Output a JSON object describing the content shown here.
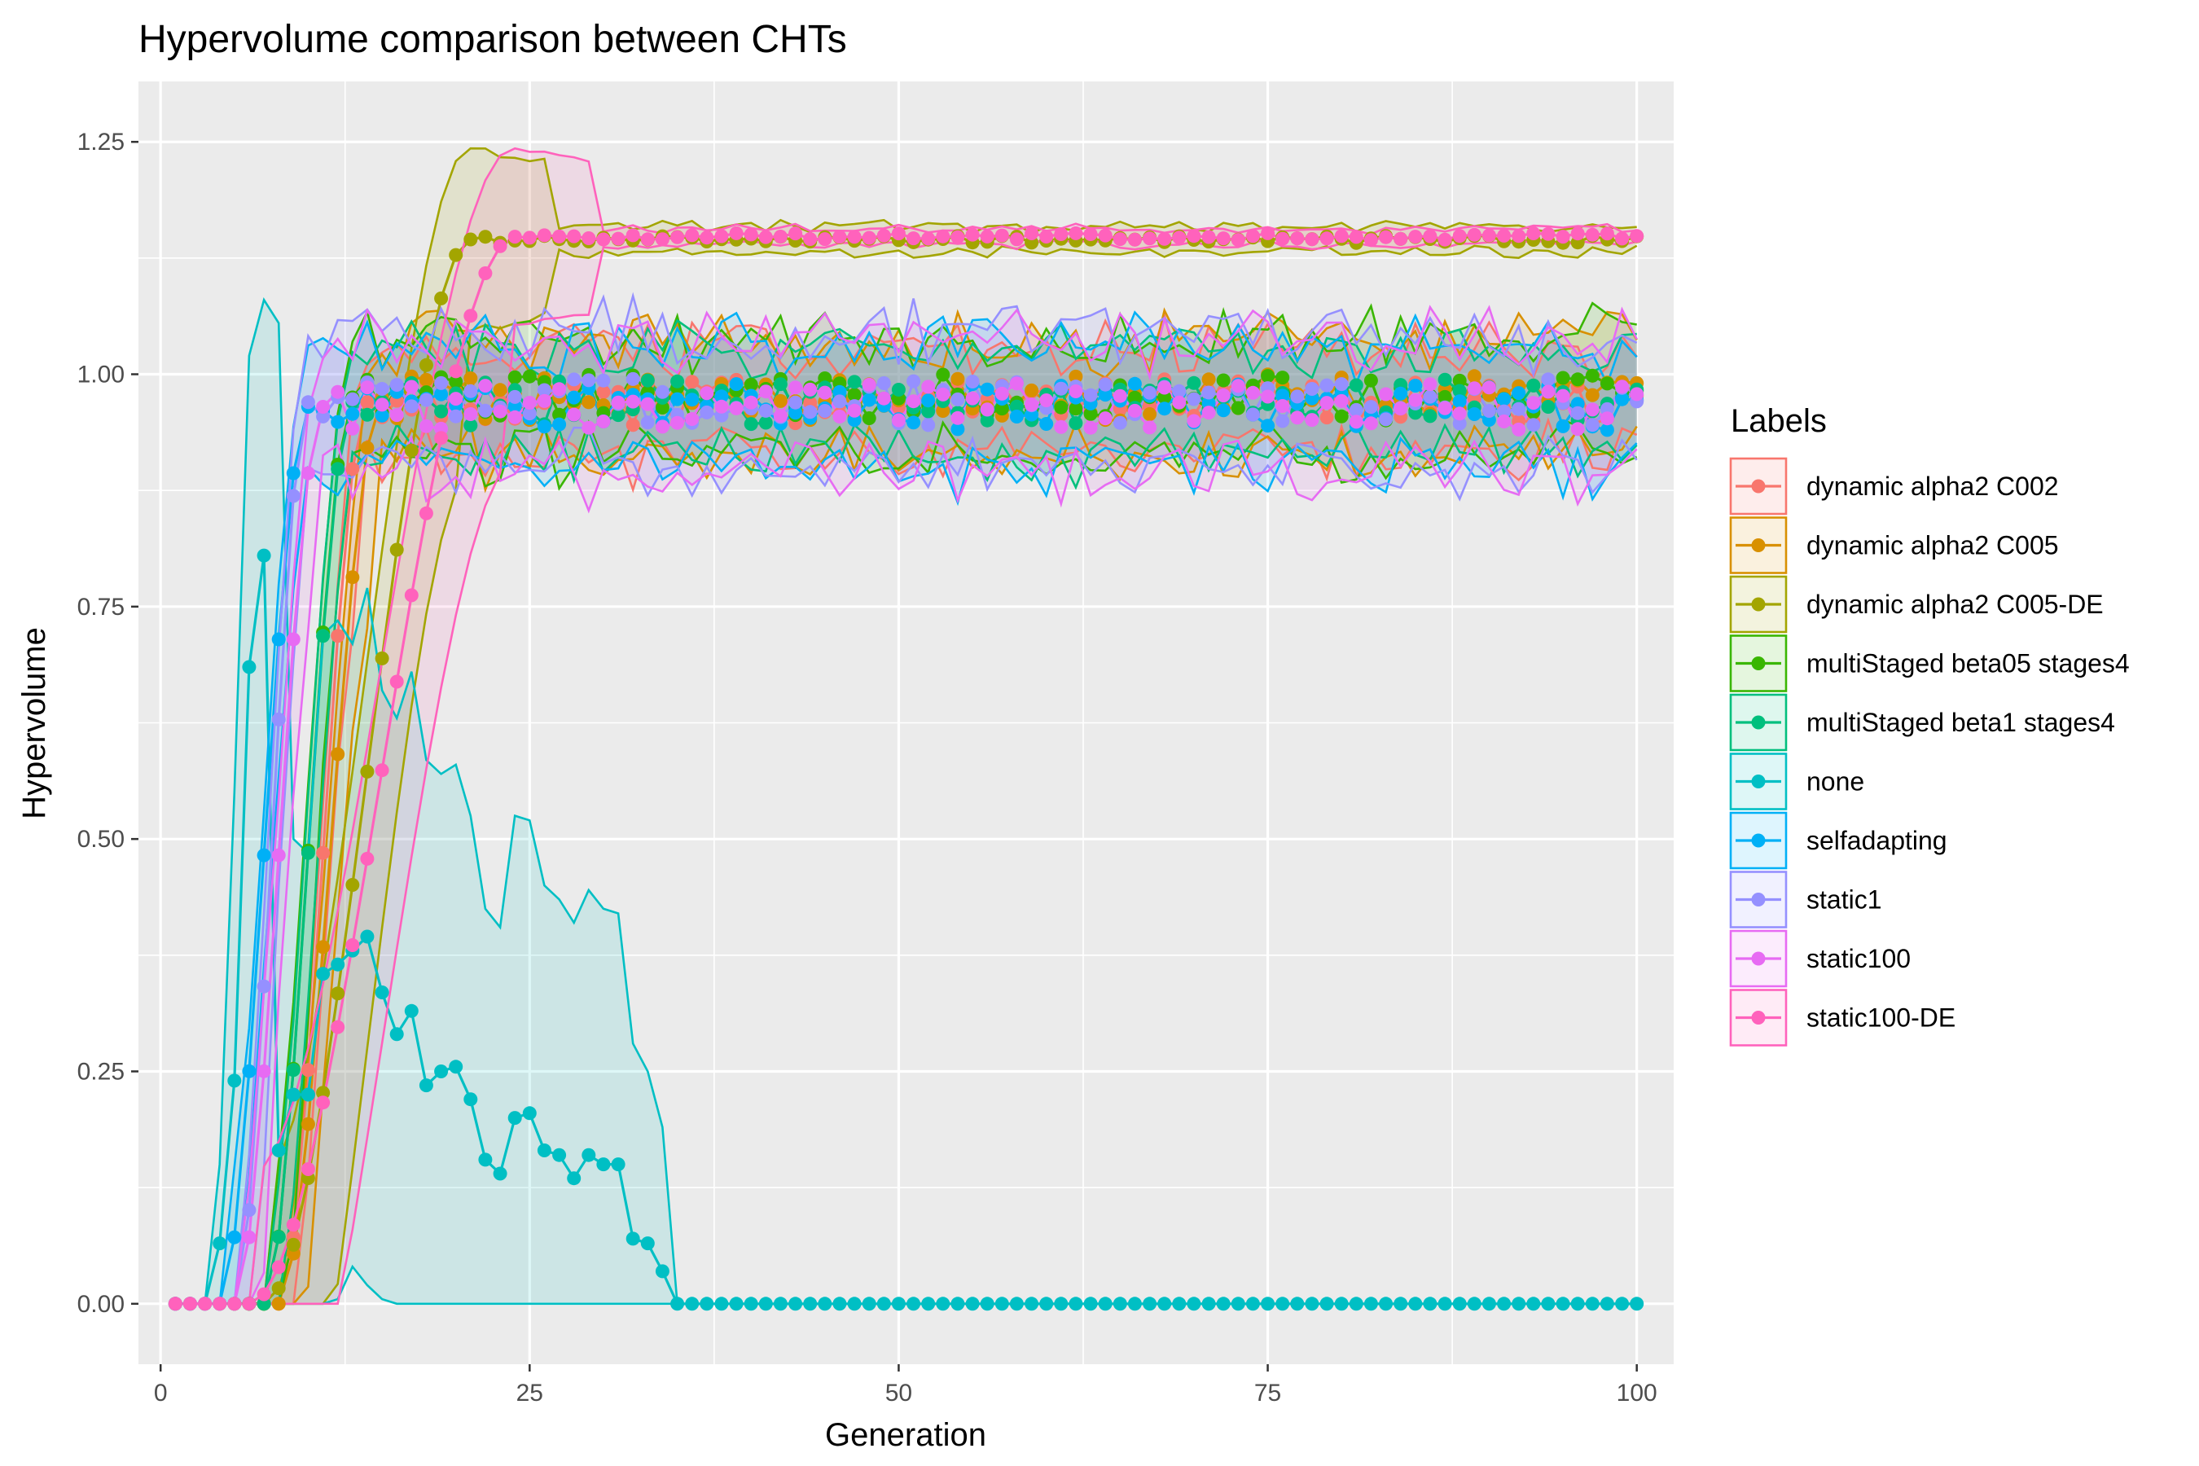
{
  "chart_data": {
    "type": "line",
    "title": "Hypervolume comparison between CHTs",
    "xlabel": "Generation",
    "ylabel": "Hypervolume",
    "xlim": [
      1,
      100
    ],
    "ylim": [
      0,
      1.25
    ],
    "x_ticks": [
      0,
      25,
      50,
      75,
      100
    ],
    "x_tick_labels": [
      "0",
      "25",
      "50",
      "75",
      "100"
    ],
    "y_ticks": [
      0,
      0.25,
      0.5,
      0.75,
      1.0,
      1.25
    ],
    "y_tick_labels": [
      "0.00",
      "0.25",
      "0.50",
      "0.75",
      "1.00",
      "1.25"
    ],
    "grid": true,
    "legend_title": "Labels",
    "legend_position": "right",
    "series": [
      {
        "name": "dynamic alpha2 C002",
        "color": "#F8766D",
        "ramp_start": 8,
        "ramp_end": 14,
        "plateau": 0.97,
        "band": 0.04,
        "lead": 0
      },
      {
        "name": "dynamic alpha2 C005",
        "color": "#D89000",
        "ramp_start": 8,
        "ramp_end": 15,
        "plateau": 0.975,
        "band": 0.045,
        "lead": 0
      },
      {
        "name": "dynamic alpha2 C005-DE",
        "color": "#A3A500",
        "ramp_start": 7,
        "ramp_end": 21,
        "plateau": 1.145,
        "band": 0.01,
        "lead": 0
      },
      {
        "name": "multiStaged beta05 stages4",
        "color": "#39B600",
        "ramp_start": 7,
        "ramp_end": 13,
        "plateau": 0.975,
        "band": 0.045,
        "lead": 0
      },
      {
        "name": "multiStaged beta1 stages4",
        "color": "#00BF7D",
        "ramp_start": 7,
        "ramp_end": 13,
        "plateau": 0.97,
        "band": 0.04,
        "lead": 0
      },
      {
        "name": "none",
        "color": "#00BFC4",
        "special": "none"
      },
      {
        "name": "selfadapting",
        "color": "#00B0F6",
        "ramp_start": 4,
        "ramp_end": 10,
        "plateau": 0.965,
        "band": 0.045,
        "lead": 0
      },
      {
        "name": "static1",
        "color": "#9590FF",
        "ramp_start": 5,
        "ramp_end": 10,
        "plateau": 0.97,
        "band": 0.05,
        "lead": 0
      },
      {
        "name": "static100",
        "color": "#E76BF3",
        "ramp_start": 5,
        "ramp_end": 11,
        "plateau": 0.965,
        "band": 0.05,
        "lead": 0
      },
      {
        "name": "static100-DE",
        "color": "#FF62BC",
        "ramp_start": 6,
        "ramp_end": 24,
        "plateau": 1.148,
        "band": 0.006,
        "lead": 0
      }
    ],
    "none_series": {
      "mean": [
        0,
        0,
        0,
        0.065,
        0.24,
        0.685,
        0.805,
        0.165,
        0.225,
        0.225,
        0.355,
        0.365,
        0.38,
        0.395,
        0.335,
        0.29,
        0.315,
        0.235,
        0.25,
        0.255,
        0.22,
        0.155,
        0.14,
        0.2,
        0.205,
        0.165,
        0.16,
        0.135,
        0.16,
        0.15,
        0.15,
        0.07,
        0.065,
        0.035,
        0
      ],
      "upper": [
        0,
        0,
        0,
        0.15,
        0.55,
        1.02,
        1.08,
        1.055,
        0.5,
        0.485,
        0.72,
        0.735,
        0.71,
        0.77,
        0.66,
        0.63,
        0.68,
        0.585,
        0.57,
        0.58,
        0.525,
        0.425,
        0.405,
        0.525,
        0.52,
        0.45,
        0.435,
        0.41,
        0.445,
        0.425,
        0.42,
        0.28,
        0.25,
        0.19,
        0
      ],
      "lower": [
        0,
        0,
        0,
        0,
        0,
        0,
        0,
        0,
        0,
        0,
        0,
        0.005,
        0.04,
        0.02,
        0.005,
        0,
        0,
        0,
        0,
        0,
        0,
        0,
        0,
        0,
        0,
        0,
        0,
        0,
        0,
        0,
        0,
        0,
        0,
        0,
        0
      ]
    }
  }
}
